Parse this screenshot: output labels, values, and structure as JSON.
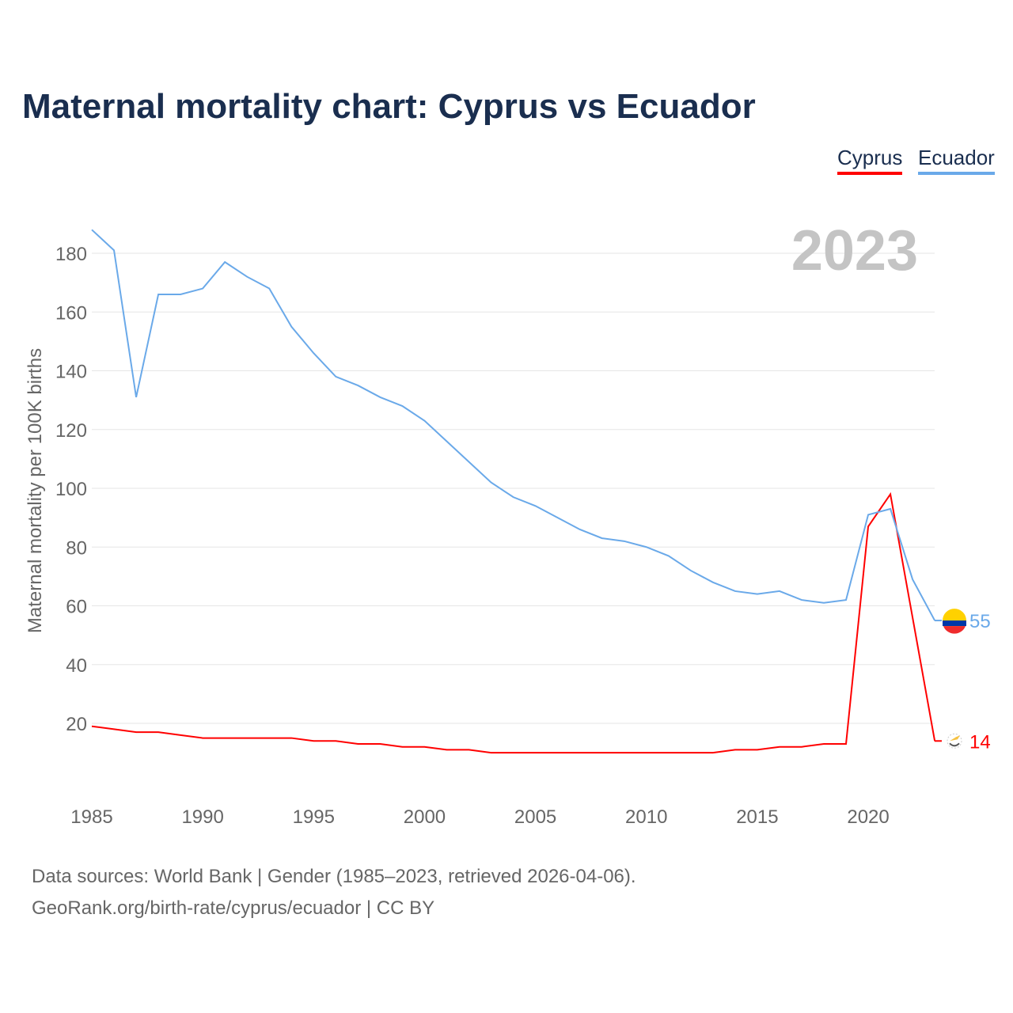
{
  "title": "Maternal mortality chart: Cyprus vs Ecuador",
  "footer": {
    "line1": "Data sources: World Bank | Gender (1985–2023, retrieved 2026-04-06).",
    "line2": "GeoRank.org/birth-rate/cyprus/ecuador | CC BY"
  },
  "chart_data": {
    "type": "line",
    "title": "Maternal mortality chart: Cyprus vs Ecuador",
    "ylabel": "Maternal mortality per 100K births",
    "xlabel": "",
    "year_label": "2023",
    "xlim": [
      1985,
      2023
    ],
    "ylim": [
      0,
      190
    ],
    "xticks": [
      1985,
      1990,
      1995,
      2000,
      2005,
      2010,
      2015,
      2020
    ],
    "yticks": [
      20,
      40,
      60,
      80,
      100,
      120,
      140,
      160,
      180
    ],
    "grid": true,
    "legend_position": "top-right",
    "x": [
      1985,
      1986,
      1987,
      1988,
      1989,
      1990,
      1991,
      1992,
      1993,
      1994,
      1995,
      1996,
      1997,
      1998,
      1999,
      2000,
      2001,
      2002,
      2003,
      2004,
      2005,
      2006,
      2007,
      2008,
      2009,
      2010,
      2011,
      2012,
      2013,
      2014,
      2015,
      2016,
      2017,
      2018,
      2019,
      2020,
      2021,
      2022,
      2023
    ],
    "series": [
      {
        "name": "Cyprus",
        "color": "#ff0000",
        "end_label": "14",
        "values": [
          19,
          18,
          17,
          17,
          16,
          15,
          15,
          15,
          15,
          15,
          14,
          14,
          13,
          13,
          12,
          12,
          11,
          11,
          10,
          10,
          10,
          10,
          10,
          10,
          10,
          10,
          10,
          10,
          10,
          11,
          11,
          12,
          12,
          13,
          13,
          87,
          98,
          56,
          14
        ]
      },
      {
        "name": "Ecuador",
        "color": "#6aa9e9",
        "end_label": "55",
        "values": [
          188,
          181,
          131,
          166,
          166,
          168,
          177,
          172,
          168,
          155,
          146,
          138,
          135,
          131,
          128,
          123,
          116,
          109,
          102,
          97,
          94,
          90,
          86,
          83,
          82,
          80,
          77,
          72,
          68,
          65,
          64,
          65,
          62,
          61,
          62,
          91,
          93,
          69,
          55
        ]
      }
    ]
  }
}
